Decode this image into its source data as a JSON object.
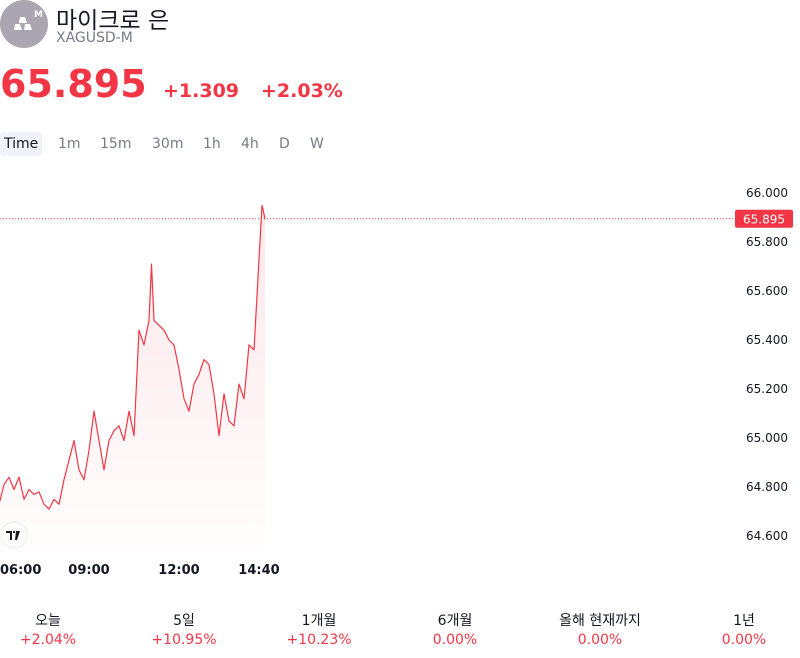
{
  "header": {
    "title": "마이크로 은",
    "symbol": "XAGUSD-M",
    "change": "+1.309",
    "change_pct": "+2.03%"
  },
  "intervals": [
    "Time",
    "1m",
    "15m",
    "30m",
    "1h",
    "4h",
    "D",
    "W"
  ],
  "performance": [
    {
      "label": "오늘",
      "value": "+2.04%"
    },
    {
      "label": "5일",
      "value": "+10.95%"
    },
    {
      "label": "1개월",
      "value": "+10.23%"
    },
    {
      "label": "6개월",
      "value": "0.00%"
    },
    {
      "label": "올해 현재까지",
      "value": "0.00%"
    },
    {
      "label": "1년",
      "value": "0.00%"
    }
  ],
  "chart_data": {
    "type": "line",
    "color": "#f23645",
    "grid": false,
    "last_value": 65.895,
    "x": [
      "06:00",
      "06:10",
      "06:20",
      "06:30",
      "06:40",
      "06:50",
      "07:00",
      "07:10",
      "07:20",
      "07:30",
      "07:40",
      "07:50",
      "08:00",
      "08:10",
      "08:20",
      "08:30",
      "08:40",
      "08:50",
      "09:00",
      "09:10",
      "09:20",
      "09:30",
      "09:40",
      "09:50",
      "10:00",
      "10:10",
      "10:20",
      "10:30",
      "10:40",
      "10:50",
      "11:00",
      "11:05",
      "11:10",
      "11:20",
      "11:30",
      "11:40",
      "11:50",
      "12:00",
      "12:10",
      "12:20",
      "12:30",
      "12:40",
      "12:50",
      "13:00",
      "13:10",
      "13:20",
      "13:30",
      "13:40",
      "13:50",
      "14:00",
      "14:10",
      "14:20",
      "14:30",
      "14:40",
      "14:46",
      "14:52"
    ],
    "values": [
      64.73,
      64.81,
      64.84,
      64.79,
      64.84,
      64.75,
      64.79,
      64.77,
      64.78,
      64.73,
      64.71,
      64.75,
      64.73,
      64.83,
      64.91,
      64.99,
      64.87,
      64.83,
      64.95,
      65.11,
      64.99,
      64.87,
      64.99,
      65.03,
      65.05,
      64.99,
      65.11,
      65.01,
      65.44,
      65.38,
      65.48,
      65.71,
      65.48,
      65.46,
      65.44,
      65.4,
      65.38,
      65.28,
      65.16,
      65.11,
      65.22,
      65.26,
      65.32,
      65.3,
      65.18,
      65.01,
      65.18,
      65.07,
      65.05,
      65.22,
      65.16,
      65.38,
      65.36,
      65.73,
      65.95,
      65.895
    ],
    "xlim": [
      "06:00",
      "14:52"
    ],
    "xticks": [
      "06:00",
      "09:00",
      "12:00",
      "14:40"
    ],
    "ylim": [
      64.543,
      66.094
    ],
    "yticks": [
      {
        "value": 64.6,
        "label": "64.600"
      },
      {
        "value": 64.8,
        "label": "64.800"
      },
      {
        "value": 65.0,
        "label": "65.000"
      },
      {
        "value": 65.2,
        "label": "65.200"
      },
      {
        "value": 65.4,
        "label": "65.400"
      },
      {
        "value": 65.6,
        "label": "65.600"
      },
      {
        "value": 65.8,
        "label": "65.800"
      },
      {
        "value": 66.0,
        "label": "66.000"
      }
    ]
  }
}
